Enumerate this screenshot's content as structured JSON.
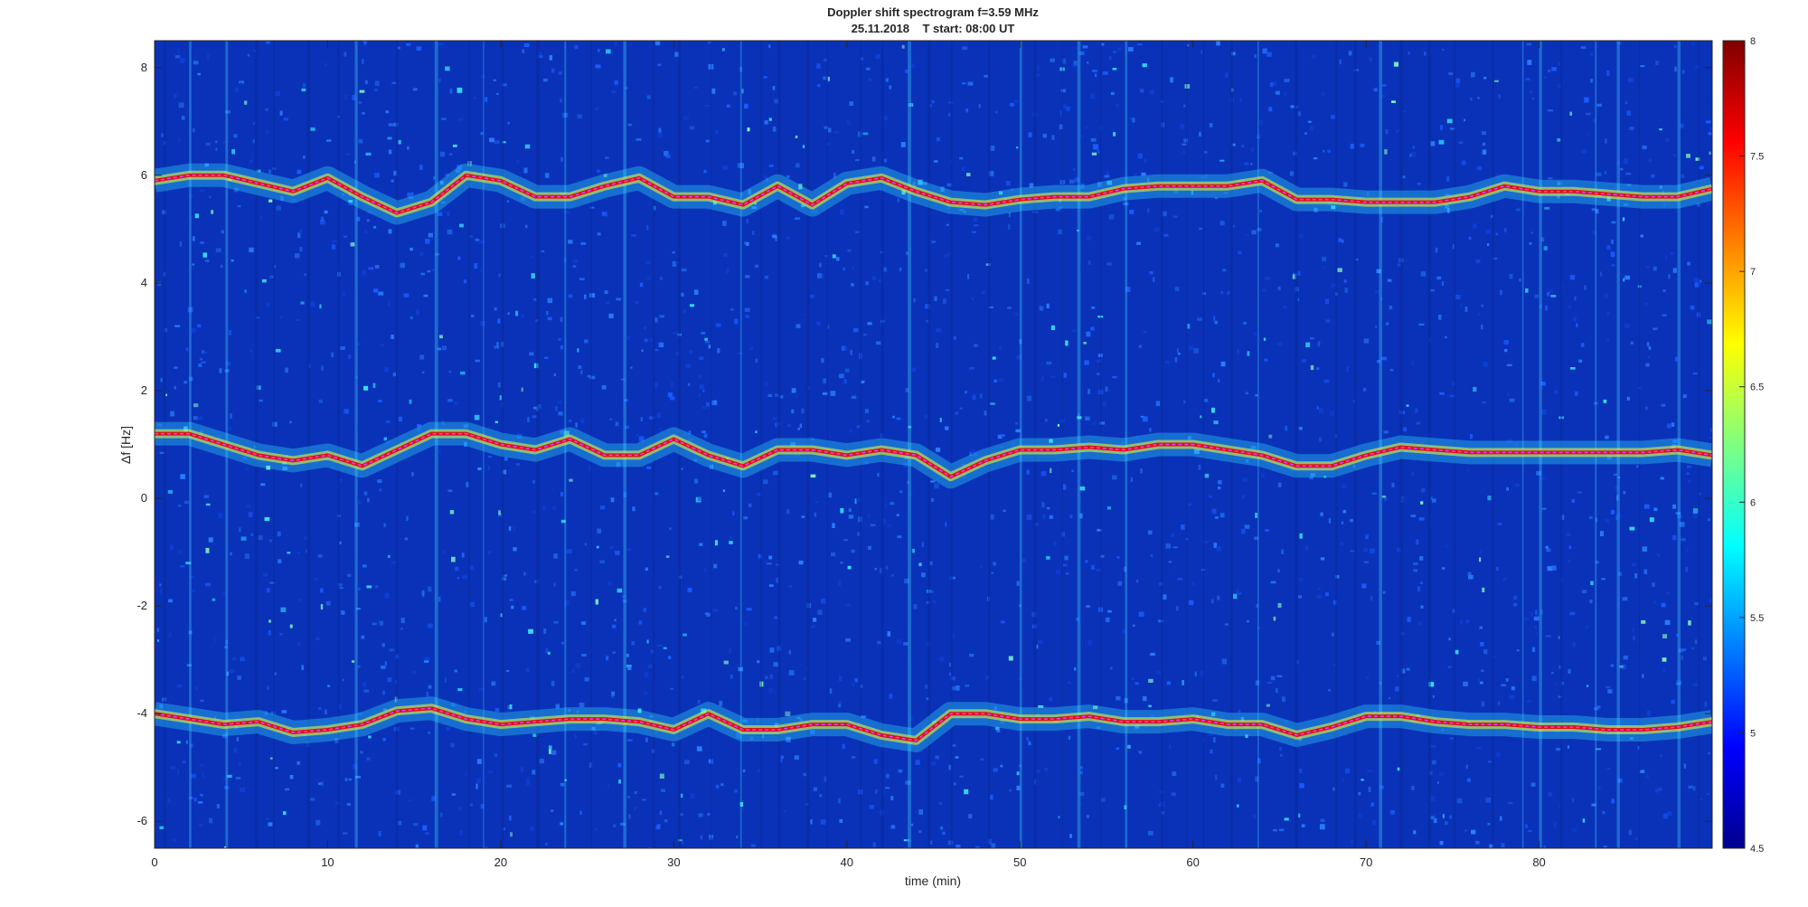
{
  "chart_data": {
    "type": "heatmap",
    "title": "Doppler shift spectrogram f=3.59 MHz",
    "subtitle": "25.11.2018    T start: 08:00 UT",
    "xlabel": "time (min)",
    "ylabel": "Δf [Hz]",
    "xlim": [
      0,
      90
    ],
    "ylim": [
      -6.5,
      8.5
    ],
    "x_ticks": [
      0,
      10,
      20,
      30,
      40,
      50,
      60,
      70,
      80
    ],
    "y_ticks": [
      -6,
      -4,
      -2,
      0,
      2,
      4,
      6,
      8
    ],
    "colorbar": {
      "colormap": "jet",
      "range": [
        4.5,
        8
      ],
      "ticks": [
        4.5,
        5,
        5.5,
        6,
        6.5,
        7,
        7.5,
        8
      ]
    },
    "background_color": "#0a32b8",
    "series": [
      {
        "x": [
          0,
          2,
          4,
          6,
          8,
          10,
          12,
          14,
          16,
          18,
          20,
          22,
          24,
          26,
          28,
          30,
          32,
          34,
          36,
          38,
          40,
          42,
          44,
          46,
          48,
          50,
          52,
          54,
          56,
          58,
          60,
          62,
          64,
          66,
          68,
          70,
          72,
          74,
          76,
          78,
          80,
          82,
          84,
          86,
          88,
          90
        ],
        "y": [
          5.9,
          6.0,
          6.0,
          5.85,
          5.7,
          5.95,
          5.6,
          5.3,
          5.5,
          6.0,
          5.9,
          5.6,
          5.6,
          5.8,
          5.95,
          5.6,
          5.6,
          5.45,
          5.8,
          5.45,
          5.85,
          5.95,
          5.7,
          5.5,
          5.45,
          5.55,
          5.6,
          5.6,
          5.75,
          5.8,
          5.8,
          5.8,
          5.9,
          5.55,
          5.55,
          5.5,
          5.5,
          5.5,
          5.6,
          5.8,
          5.7,
          5.7,
          5.65,
          5.6,
          5.6,
          5.75
        ]
      },
      {
        "x": [
          0,
          2,
          4,
          6,
          8,
          10,
          12,
          14,
          16,
          18,
          20,
          22,
          24,
          26,
          28,
          30,
          32,
          34,
          36,
          38,
          40,
          42,
          44,
          46,
          48,
          50,
          52,
          54,
          56,
          58,
          60,
          62,
          64,
          66,
          68,
          70,
          72,
          74,
          76,
          78,
          80,
          82,
          84,
          86,
          88,
          90
        ],
        "y": [
          1.2,
          1.2,
          1.0,
          0.8,
          0.7,
          0.8,
          0.6,
          0.9,
          1.2,
          1.2,
          1.0,
          0.9,
          1.1,
          0.8,
          0.8,
          1.1,
          0.8,
          0.6,
          0.9,
          0.9,
          0.8,
          0.9,
          0.8,
          0.4,
          0.7,
          0.9,
          0.9,
          0.95,
          0.9,
          1.0,
          1.0,
          0.9,
          0.8,
          0.6,
          0.6,
          0.8,
          0.95,
          0.9,
          0.85,
          0.85,
          0.85,
          0.85,
          0.85,
          0.85,
          0.9,
          0.8
        ]
      },
      {
        "x": [
          0,
          2,
          4,
          6,
          8,
          10,
          12,
          14,
          16,
          18,
          20,
          22,
          24,
          26,
          28,
          30,
          32,
          34,
          36,
          38,
          40,
          42,
          44,
          46,
          48,
          50,
          52,
          54,
          56,
          58,
          60,
          62,
          64,
          66,
          68,
          70,
          72,
          74,
          76,
          78,
          80,
          82,
          84,
          86,
          88,
          90
        ],
        "y": [
          -4.0,
          -4.1,
          -4.2,
          -4.15,
          -4.35,
          -4.3,
          -4.2,
          -3.95,
          -3.9,
          -4.1,
          -4.2,
          -4.15,
          -4.1,
          -4.1,
          -4.15,
          -4.3,
          -4.0,
          -4.3,
          -4.3,
          -4.2,
          -4.2,
          -4.4,
          -4.5,
          -4.0,
          -4.0,
          -4.1,
          -4.1,
          -4.05,
          -4.15,
          -4.15,
          -4.1,
          -4.2,
          -4.2,
          -4.4,
          -4.25,
          -4.05,
          -4.05,
          -4.15,
          -4.2,
          -4.2,
          -4.25,
          -4.25,
          -4.3,
          -4.3,
          -4.25,
          -4.15
        ]
      }
    ]
  }
}
